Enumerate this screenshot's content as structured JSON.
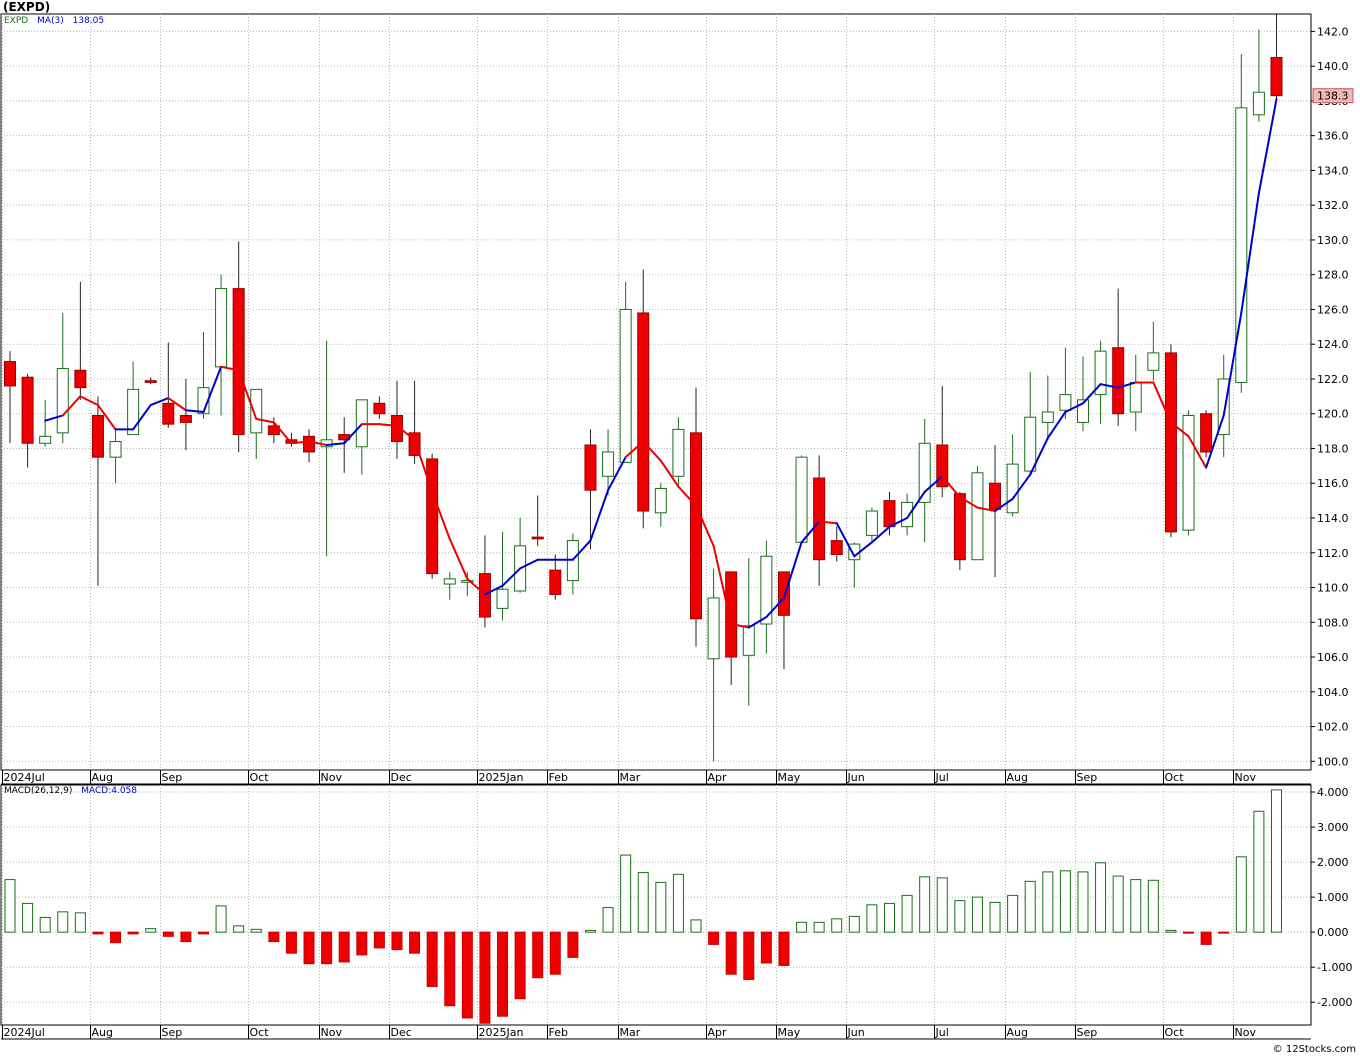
{
  "title": "(EXPD)",
  "watermark": "© 12Stocks.com",
  "colors": {
    "up": "#1a6e1a",
    "down": "#ee0000",
    "ma_up": "#0000cc",
    "ma_down": "#ee0000",
    "grid": "#b8b8b8",
    "last_tag": "#f2b8b8"
  },
  "legend_price": {
    "symbol": "EXPD",
    "ma_label": "MA(3)",
    "ma_value": "138.05"
  },
  "legend_macd": {
    "label": "MACD(26,12,9)",
    "value_label": "MACD:4.058"
  },
  "last_price_label": "138.3",
  "months": [
    {
      "label": "2024Jul",
      "i": 0
    },
    {
      "label": "Aug",
      "i": 5
    },
    {
      "label": "Sep",
      "i": 9
    },
    {
      "label": "Oct",
      "i": 14
    },
    {
      "label": "Nov",
      "i": 18
    },
    {
      "label": "Dec",
      "i": 22
    },
    {
      "label": "2025Jan",
      "i": 27
    },
    {
      "label": "Feb",
      "i": 31
    },
    {
      "label": "Mar",
      "i": 35
    },
    {
      "label": "Apr",
      "i": 40
    },
    {
      "label": "May",
      "i": 44
    },
    {
      "label": "Jun",
      "i": 48
    },
    {
      "label": "Jul",
      "i": 53
    },
    {
      "label": "Aug",
      "i": 57
    },
    {
      "label": "Sep",
      "i": 61
    },
    {
      "label": "Oct",
      "i": 66
    },
    {
      "label": "Nov",
      "i": 70
    }
  ],
  "chart_data": [
    {
      "type": "candlestick",
      "title": "(EXPD)",
      "ylim": [
        99.5,
        143
      ],
      "yticks": [
        "100.0",
        "102.0",
        "104.0",
        "106.0",
        "108.0",
        "110.0",
        "112.0",
        "114.0",
        "116.0",
        "118.0",
        "120.0",
        "122.0",
        "124.0",
        "126.0",
        "128.0",
        "130.0",
        "132.0",
        "134.0",
        "136.0",
        "138.0",
        "140.0",
        "142.0"
      ],
      "candles": [
        {
          "o": 123.0,
          "h": 123.6,
          "l": 118.3,
          "c": 121.6
        },
        {
          "o": 122.1,
          "h": 122.3,
          "l": 116.9,
          "c": 118.3
        },
        {
          "o": 118.3,
          "h": 120.8,
          "l": 118.1,
          "c": 118.7
        },
        {
          "o": 118.9,
          "h": 125.8,
          "l": 118.3,
          "c": 122.6
        },
        {
          "o": 122.5,
          "h": 127.6,
          "l": 120.8,
          "c": 121.5
        },
        {
          "o": 119.9,
          "h": 121.0,
          "l": 110.1,
          "c": 117.5
        },
        {
          "o": 117.5,
          "h": 119.1,
          "l": 116.0,
          "c": 118.4
        },
        {
          "o": 118.8,
          "h": 123.0,
          "l": 118.8,
          "c": 121.4
        },
        {
          "o": 121.9,
          "h": 122.1,
          "l": 121.7,
          "c": 121.8
        },
        {
          "o": 120.6,
          "h": 124.1,
          "l": 119.2,
          "c": 119.4
        },
        {
          "o": 119.9,
          "h": 122.0,
          "l": 117.9,
          "c": 119.5
        },
        {
          "o": 120.0,
          "h": 124.7,
          "l": 119.7,
          "c": 121.5
        },
        {
          "o": 122.7,
          "h": 128.0,
          "l": 119.9,
          "c": 127.2
        },
        {
          "o": 127.2,
          "h": 129.9,
          "l": 117.8,
          "c": 118.8
        },
        {
          "o": 118.9,
          "h": 121.1,
          "l": 117.4,
          "c": 121.4
        },
        {
          "o": 119.3,
          "h": 119.8,
          "l": 118.3,
          "c": 118.8
        },
        {
          "o": 118.5,
          "h": 118.9,
          "l": 118.1,
          "c": 118.3
        },
        {
          "o": 118.7,
          "h": 119.1,
          "l": 117.2,
          "c": 117.8
        },
        {
          "o": 118.1,
          "h": 124.2,
          "l": 111.8,
          "c": 118.5
        },
        {
          "o": 118.8,
          "h": 119.8,
          "l": 116.6,
          "c": 118.5
        },
        {
          "o": 118.1,
          "h": 120.8,
          "l": 116.5,
          "c": 120.8
        },
        {
          "o": 120.6,
          "h": 121.0,
          "l": 119.7,
          "c": 120.0
        },
        {
          "o": 119.9,
          "h": 121.9,
          "l": 117.4,
          "c": 118.4
        },
        {
          "o": 118.9,
          "h": 121.9,
          "l": 117.1,
          "c": 117.6
        },
        {
          "o": 117.4,
          "h": 117.7,
          "l": 110.5,
          "c": 110.8
        },
        {
          "o": 110.2,
          "h": 110.9,
          "l": 109.3,
          "c": 110.5
        },
        {
          "o": 110.3,
          "h": 110.9,
          "l": 109.5,
          "c": 110.4
        },
        {
          "o": 110.8,
          "h": 113.0,
          "l": 107.7,
          "c": 108.3
        },
        {
          "o": 108.8,
          "h": 113.2,
          "l": 108.1,
          "c": 109.9
        },
        {
          "o": 109.8,
          "h": 114.0,
          "l": 109.7,
          "c": 112.4
        },
        {
          "o": 112.9,
          "h": 115.3,
          "l": 112.4,
          "c": 112.8
        },
        {
          "o": 111.0,
          "h": 111.9,
          "l": 109.3,
          "c": 109.6
        },
        {
          "o": 110.4,
          "h": 113.1,
          "l": 109.6,
          "c": 112.7
        },
        {
          "o": 118.2,
          "h": 119.1,
          "l": 112.2,
          "c": 115.6
        },
        {
          "o": 116.4,
          "h": 119.1,
          "l": 115.3,
          "c": 117.8
        },
        {
          "o": 117.2,
          "h": 127.6,
          "l": 117.2,
          "c": 126.0
        },
        {
          "o": 125.8,
          "h": 128.3,
          "l": 113.4,
          "c": 114.4
        },
        {
          "o": 114.3,
          "h": 116.0,
          "l": 113.5,
          "c": 115.7
        },
        {
          "o": 116.4,
          "h": 119.8,
          "l": 115.9,
          "c": 119.1
        },
        {
          "o": 118.9,
          "h": 121.5,
          "l": 106.6,
          "c": 108.2
        },
        {
          "o": 105.9,
          "h": 111.1,
          "l": 100.0,
          "c": 109.4
        },
        {
          "o": 110.9,
          "h": 110.9,
          "l": 104.4,
          "c": 106.0
        },
        {
          "o": 106.1,
          "h": 111.7,
          "l": 103.2,
          "c": 107.8
        },
        {
          "o": 107.9,
          "h": 112.7,
          "l": 106.2,
          "c": 111.8
        },
        {
          "o": 110.9,
          "h": 110.9,
          "l": 105.3,
          "c": 108.4
        },
        {
          "o": 112.6,
          "h": 117.6,
          "l": 112.5,
          "c": 117.5
        },
        {
          "o": 116.3,
          "h": 117.6,
          "l": 110.1,
          "c": 111.6
        },
        {
          "o": 112.7,
          "h": 113.5,
          "l": 111.5,
          "c": 111.9
        },
        {
          "o": 111.6,
          "h": 112.6,
          "l": 110.0,
          "c": 112.5
        },
        {
          "o": 113.0,
          "h": 114.6,
          "l": 112.6,
          "c": 114.4
        },
        {
          "o": 115.0,
          "h": 115.5,
          "l": 113.0,
          "c": 113.5
        },
        {
          "o": 113.5,
          "h": 115.4,
          "l": 113.0,
          "c": 114.9
        },
        {
          "o": 114.9,
          "h": 119.7,
          "l": 112.6,
          "c": 118.3
        },
        {
          "o": 118.2,
          "h": 121.6,
          "l": 115.2,
          "c": 115.8
        },
        {
          "o": 115.4,
          "h": 115.5,
          "l": 111.0,
          "c": 111.6
        },
        {
          "o": 111.6,
          "h": 117.0,
          "l": 111.6,
          "c": 116.6
        },
        {
          "o": 116.0,
          "h": 118.2,
          "l": 110.6,
          "c": 114.5
        },
        {
          "o": 114.3,
          "h": 118.8,
          "l": 114.1,
          "c": 117.1
        },
        {
          "o": 116.7,
          "h": 122.4,
          "l": 116.4,
          "c": 119.8
        },
        {
          "o": 119.5,
          "h": 122.2,
          "l": 118.5,
          "c": 120.1
        },
        {
          "o": 120.2,
          "h": 123.8,
          "l": 119.7,
          "c": 121.1
        },
        {
          "o": 119.5,
          "h": 123.3,
          "l": 119.0,
          "c": 120.8
        },
        {
          "o": 121.1,
          "h": 124.2,
          "l": 119.4,
          "c": 123.6
        },
        {
          "o": 123.8,
          "h": 127.2,
          "l": 119.3,
          "c": 120.0
        },
        {
          "o": 120.1,
          "h": 123.4,
          "l": 119.0,
          "c": 121.8
        },
        {
          "o": 122.5,
          "h": 125.3,
          "l": 121.9,
          "c": 123.5
        },
        {
          "o": 123.5,
          "h": 124.0,
          "l": 112.9,
          "c": 113.2
        },
        {
          "o": 113.3,
          "h": 120.2,
          "l": 113.0,
          "c": 119.9
        },
        {
          "o": 120.0,
          "h": 120.2,
          "l": 117.5,
          "c": 117.8
        },
        {
          "o": 118.8,
          "h": 123.4,
          "l": 117.5,
          "c": 122.0
        },
        {
          "o": 121.8,
          "h": 140.7,
          "l": 121.2,
          "c": 137.6
        },
        {
          "o": 137.2,
          "h": 142.1,
          "l": 136.8,
          "c": 138.5
        },
        {
          "o": 140.5,
          "h": 143.0,
          "l": 138.0,
          "c": 138.3
        }
      ],
      "ma3": [
        null,
        null,
        119.6,
        119.9,
        121.0,
        120.5,
        119.1,
        119.1,
        120.5,
        120.9,
        120.2,
        120.1,
        122.7,
        122.5,
        119.7,
        119.5,
        118.3,
        118.4,
        118.2,
        118.3,
        119.4,
        119.4,
        119.3,
        118.5,
        115.5,
        112.8,
        110.5,
        109.6,
        110.1,
        111.1,
        111.6,
        111.6,
        111.6,
        112.7,
        115.6,
        117.5,
        118.4,
        117.3,
        115.8,
        114.7,
        112.4,
        107.9,
        107.7,
        108.3,
        109.4,
        112.6,
        113.8,
        113.7,
        111.8,
        112.6,
        113.5,
        114.0,
        115.5,
        116.4,
        115.2,
        114.6,
        114.4,
        115.1,
        116.5,
        118.6,
        120.1,
        120.6,
        121.7,
        121.5,
        121.8,
        121.8,
        119.5,
        118.7,
        116.9,
        119.9,
        125.8,
        132.7,
        138.1
      ],
      "ma_direction": [
        "up",
        "up",
        "up",
        "up",
        "down",
        "down",
        "down",
        "up",
        "up",
        "up",
        "down",
        "up",
        "up",
        "down",
        "down",
        "down",
        "down",
        "down",
        "down",
        "up",
        "up",
        "down",
        "down",
        "down",
        "down",
        "down",
        "down",
        "down",
        "up",
        "up",
        "up",
        "up",
        "up",
        "up",
        "up",
        "up",
        "down",
        "down",
        "down",
        "down",
        "down",
        "down",
        "down",
        "up",
        "up",
        "up",
        "up",
        "down",
        "up",
        "up",
        "up",
        "up",
        "up",
        "up",
        "down",
        "down",
        "down",
        "up",
        "up",
        "up",
        "up",
        "up",
        "up",
        "up",
        "up",
        "down",
        "down",
        "down",
        "down",
        "up",
        "up",
        "up",
        "up"
      ]
    },
    {
      "type": "bar",
      "title": "MACD(26,12,9)",
      "ylim": [
        -2.65,
        4.2
      ],
      "yticks": [
        "-2.000",
        "-1.000",
        "0.000",
        "1.000",
        "2.000",
        "3.000",
        "4.000"
      ],
      "values": [
        1.5,
        0.82,
        0.42,
        0.58,
        0.55,
        -0.05,
        -0.3,
        -0.05,
        0.1,
        -0.12,
        -0.27,
        -0.05,
        0.75,
        0.18,
        0.08,
        -0.27,
        -0.6,
        -0.9,
        -0.9,
        -0.85,
        -0.65,
        -0.45,
        -0.5,
        -0.6,
        -1.55,
        -2.1,
        -2.45,
        -2.6,
        -2.4,
        -1.9,
        -1.3,
        -1.2,
        -0.72,
        0.05,
        0.7,
        2.2,
        1.7,
        1.42,
        1.65,
        0.35,
        -0.35,
        -1.2,
        -1.35,
        -0.88,
        -0.95,
        0.28,
        0.28,
        0.38,
        0.45,
        0.78,
        0.82,
        1.05,
        1.58,
        1.55,
        0.9,
        1.0,
        0.85,
        1.05,
        1.45,
        1.72,
        1.75,
        1.72,
        1.98,
        1.6,
        1.5,
        1.48,
        0.05,
        -0.02,
        -0.35,
        -0.02,
        2.15,
        3.45,
        4.06
      ]
    }
  ]
}
